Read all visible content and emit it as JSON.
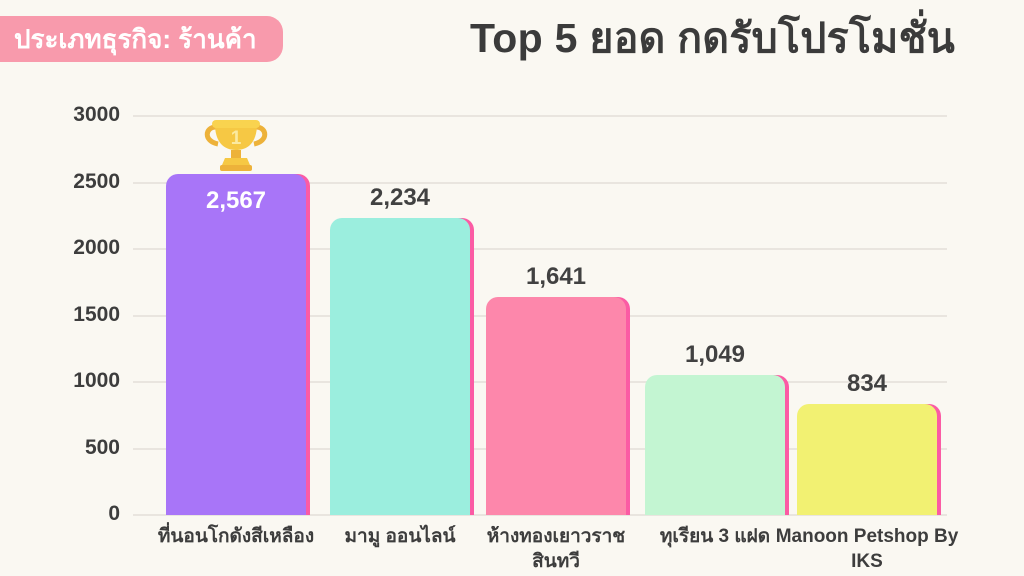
{
  "badge": {
    "label": "ประเภทธุรกิจ: ร้านค้า"
  },
  "title": "Top 5 ยอด กดรับโปรโมชั่น",
  "trophy": {
    "rank": "1"
  },
  "colors": {
    "background": "#faf8f2",
    "badge_bg": "#f89aac",
    "badge_text": "#ffffff",
    "title_text": "#3b3b3b",
    "grid_line": "#e9e5df",
    "axis_text": "#3d3d3d",
    "value_text": "#414141",
    "value_text_on_bar": "#ffffff",
    "bar_shadow": "#fb5ba4",
    "trophy_gold": "#f6c844",
    "trophy_dark": "#edb23a"
  },
  "chart_data": {
    "type": "bar",
    "title": "Top 5 ยอด กดรับโปรโมชั่น",
    "category_badge": "ประเภทธุรกิจ: ร้านค้า",
    "categories": [
      "ที่นอนโกดังสีเหลือง",
      "มามู ออนไลน์",
      "ห้างทองเยาวราช สินทวี",
      "ทุเรียน 3 แฝด",
      "Manoon Petshop By IKS"
    ],
    "values": [
      2567,
      2234,
      1641,
      1049,
      834
    ],
    "value_labels": [
      "2,567",
      "2,234",
      "1,641",
      "1,049",
      "834"
    ],
    "bar_colors": [
      "#a875f8",
      "#9beede",
      "#fd87ab",
      "#c3f5d2",
      "#f2f172"
    ],
    "xlabel": "",
    "ylabel": "",
    "ylim": [
      0,
      3000
    ],
    "yticks": [
      0,
      500,
      1000,
      1500,
      2000,
      2500,
      3000
    ],
    "grid": true,
    "legend": false,
    "annotations": [
      {
        "target_bar_index": 0,
        "type": "trophy",
        "text": "1"
      }
    ]
  }
}
